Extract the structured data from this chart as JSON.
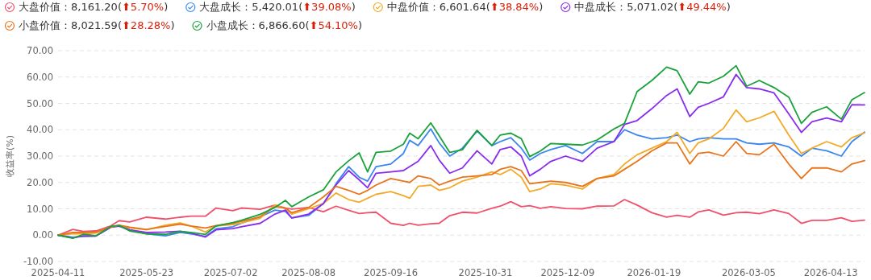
{
  "chart_data": {
    "type": "line",
    "ylabel": "收益率(%)",
    "ylim": [
      -10,
      70
    ],
    "yticks": [
      {
        "value": -10,
        "label": "-10.00"
      },
      {
        "value": 0,
        "label": "0.00"
      },
      {
        "value": 10,
        "label": "10.00"
      },
      {
        "value": 20,
        "label": "20.00"
      },
      {
        "value": 30,
        "label": "30.00"
      },
      {
        "value": 40,
        "label": "40.00"
      },
      {
        "value": 50,
        "label": "50.00"
      },
      {
        "value": 60,
        "label": "60.00"
      },
      {
        "value": 70,
        "label": "70.00"
      }
    ],
    "xlim": [
      "2025-04-11",
      "2026-04-29"
    ],
    "xticks": [
      {
        "value": "2025-04-11",
        "label": "2025-04-11"
      },
      {
        "value": "2025-05-23",
        "label": "2025-05-23"
      },
      {
        "value": "2025-07-02",
        "label": "2025-07-02"
      },
      {
        "value": "2025-08-08",
        "label": "2025-08-08"
      },
      {
        "value": "2025-09-16",
        "label": "2025-09-16"
      },
      {
        "value": "2025-10-31",
        "label": "2025-10-31"
      },
      {
        "value": "2025-12-09",
        "label": "2025-12-09"
      },
      {
        "value": "2026-01-19",
        "label": "2026-01-19"
      },
      {
        "value": "2026-03-05",
        "label": "2026-03-05"
      },
      {
        "value": "2026-04-13",
        "label": "2026-04-13"
      }
    ],
    "x": [
      "2025-04-11",
      "2025-04-18",
      "2025-04-23",
      "2025-04-29",
      "2025-05-06",
      "2025-05-10",
      "2025-05-15",
      "2025-05-23",
      "2025-06-01",
      "2025-06-08",
      "2025-06-13",
      "2025-06-20",
      "2025-06-25",
      "2025-07-03",
      "2025-07-07",
      "2025-07-16",
      "2025-07-23",
      "2025-07-28",
      "2025-07-31",
      "2025-08-08",
      "2025-08-15",
      "2025-08-21",
      "2025-08-27",
      "2025-09-01",
      "2025-09-05",
      "2025-09-09",
      "2025-09-16",
      "2025-09-22",
      "2025-09-25",
      "2025-09-29",
      "2025-10-05",
      "2025-10-09",
      "2025-10-14",
      "2025-10-20",
      "2025-10-27",
      "2025-11-03",
      "2025-11-07",
      "2025-11-12",
      "2025-11-17",
      "2025-11-21",
      "2025-11-26",
      "2025-12-01",
      "2025-12-08",
      "2025-12-16",
      "2025-12-23",
      "2025-12-31",
      "2026-01-05",
      "2026-01-11",
      "2026-01-18",
      "2026-01-25",
      "2026-01-30",
      "2026-02-05",
      "2026-02-09",
      "2026-02-14",
      "2026-02-21",
      "2026-02-27",
      "2026-03-04",
      "2026-03-10",
      "2026-03-17",
      "2026-03-24",
      "2026-03-30",
      "2026-04-04",
      "2026-04-11",
      "2026-04-18",
      "2026-04-23",
      "2026-04-29"
    ],
    "grid": "y",
    "legend": "top left",
    "marker": "none",
    "line_style": "solid",
    "series": [
      {
        "name": "大盘价值：8,161.20(⬆5.70%)",
        "color": "#f0506a",
        "values": [
          0,
          2.2,
          1.4,
          1.6,
          3.5,
          5.5,
          5,
          6.8,
          6.1,
          6.8,
          7.2,
          7.2,
          10.3,
          9.3,
          10.3,
          9.8,
          11.4,
          10.3,
          9.9,
          10.5,
          8.9,
          11,
          9.4,
          8.2,
          8.5,
          8.7,
          4.5,
          3.7,
          4.5,
          3.8,
          4.3,
          4.5,
          7.4,
          8.7,
          8.4,
          10.2,
          11,
          12.7,
          10.8,
          11.2,
          10.2,
          10.8,
          10.1,
          10,
          11,
          11.1,
          13.5,
          11.4,
          8.5,
          6.8,
          7.5,
          6.8,
          8.8,
          9.6,
          7.6,
          8.5,
          8.7,
          8.1,
          9.6,
          8.2,
          4.5,
          5.6,
          5.6,
          6.6,
          5.2,
          5.7
        ]
      },
      {
        "name": "大盘成长：5,420.01(⬆39.08%)",
        "color": "#3a86f0",
        "values": [
          0,
          -0.8,
          -0.5,
          -0.3,
          3,
          3.6,
          2,
          0.5,
          -0.3,
          1,
          0.5,
          -0.5,
          2.4,
          3.2,
          4.5,
          7,
          9.5,
          9,
          6.5,
          7.5,
          12,
          19.5,
          26,
          22,
          20.5,
          26,
          27,
          31,
          36,
          34,
          40.3,
          35,
          30,
          33,
          39.5,
          34,
          35.5,
          37,
          33,
          28.5,
          31,
          32.5,
          34,
          31,
          35.5,
          35.5,
          40,
          38,
          36.5,
          37,
          38,
          35.5,
          36.5,
          37,
          36.5,
          36.5,
          35,
          34.5,
          35,
          33.5,
          30,
          33,
          32,
          30,
          35.5,
          39.1
        ]
      },
      {
        "name": "中盘价值：6,601.64(⬆38.84%)",
        "color": "#f2aa2a",
        "values": [
          0,
          0.5,
          0.5,
          0.8,
          3,
          3.6,
          2.8,
          2,
          3.8,
          4.6,
          3.5,
          1.2,
          3.5,
          4,
          4.6,
          6.4,
          11.5,
          10,
          8,
          10,
          12,
          16,
          13.5,
          12.5,
          14,
          15.5,
          16.5,
          15,
          14,
          18.5,
          19,
          17,
          18,
          20.5,
          22,
          24,
          23,
          25,
          22,
          16.5,
          17.5,
          19.5,
          19,
          17.5,
          21.5,
          23,
          27,
          30.5,
          33,
          35.5,
          39,
          31,
          35,
          36.5,
          40.5,
          47.5,
          43,
          44.5,
          47,
          38,
          31,
          33,
          35.5,
          33.5,
          37,
          38.8
        ]
      },
      {
        "name": "中盘成长：5,071.02(⬆49.44%)",
        "color": "#8a2cf0",
        "values": [
          0,
          -1,
          -0.3,
          -0.3,
          3,
          3.4,
          2,
          1,
          1.2,
          1.5,
          0.8,
          -0.7,
          2,
          2.5,
          3.2,
          4.5,
          8,
          9.5,
          6.5,
          8,
          12,
          19,
          24.5,
          21,
          18,
          23.5,
          24,
          24.5,
          26,
          28,
          34,
          28.5,
          23.5,
          25.5,
          32,
          27,
          32.5,
          33.5,
          30,
          22.5,
          25,
          28,
          30,
          28,
          33,
          35.5,
          42,
          43.5,
          48,
          53,
          55.5,
          45,
          48.5,
          50,
          52.5,
          61,
          56,
          55.5,
          54,
          46,
          39,
          43,
          44.5,
          43,
          49.5,
          49.4
        ]
      },
      {
        "name": "小盘价值：8,021.59(⬆28.28%)",
        "color": "#e8741c",
        "values": [
          0,
          1,
          1,
          1.2,
          3,
          3.8,
          3,
          2.2,
          3.3,
          4.2,
          3.5,
          2.7,
          3.6,
          4.5,
          5.2,
          7,
          10.8,
          10.3,
          8.5,
          10.5,
          14.5,
          18.5,
          17,
          15.5,
          17,
          19,
          21.5,
          20.5,
          20,
          22.5,
          21.5,
          19,
          20.5,
          22,
          22.5,
          23,
          25,
          26,
          24.5,
          19.5,
          20,
          20.5,
          20,
          18.5,
          21.5,
          22.5,
          25,
          28,
          32,
          35,
          35,
          27,
          31,
          31.5,
          30,
          35.5,
          31,
          30.5,
          34.5,
          27,
          21.5,
          25.5,
          25.5,
          24,
          27,
          28.3
        ]
      },
      {
        "name": "小盘成长：6,866.60(⬆54.10%)",
        "color": "#1aa23a",
        "values": [
          0,
          -1.2,
          0.3,
          -0.2,
          3.3,
          3.7,
          1.6,
          0.5,
          0.3,
          1.4,
          1,
          0.3,
          3.5,
          4.8,
          5.6,
          7.9,
          10.5,
          13.2,
          10.8,
          14.5,
          17.2,
          24,
          28.2,
          31.2,
          24,
          31.4,
          31.9,
          34.5,
          38.7,
          36.6,
          42.6,
          37.7,
          31.4,
          32.4,
          39.8,
          34,
          38,
          38.7,
          36.6,
          29.8,
          31.9,
          34.8,
          34.5,
          34.2,
          36.1,
          40.3,
          42.4,
          54.5,
          58.7,
          63.8,
          62.4,
          53.5,
          58.2,
          57.7,
          60.3,
          64.3,
          56.5,
          58.7,
          56,
          52.4,
          42.4,
          46.6,
          48.7,
          44,
          51.4,
          54.1
        ]
      }
    ]
  }
}
